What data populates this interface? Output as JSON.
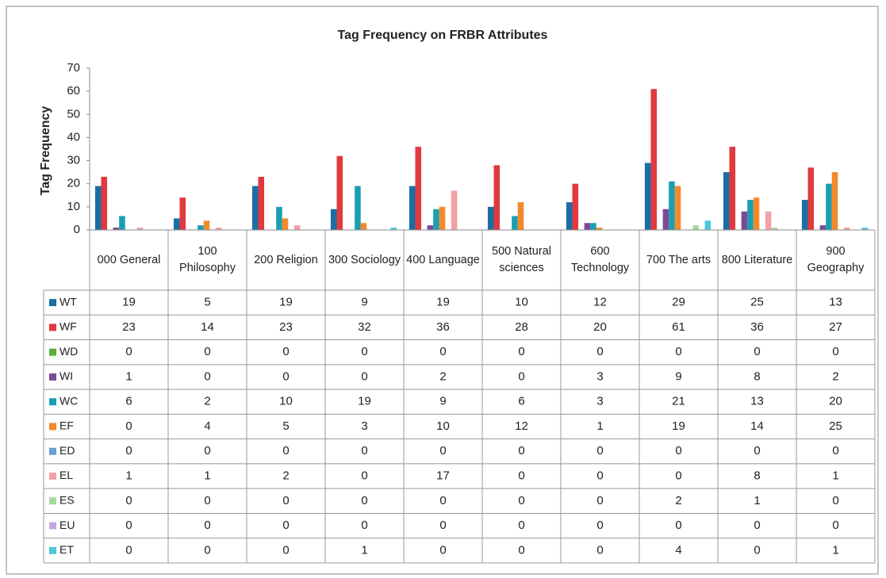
{
  "chart_data": {
    "type": "bar",
    "title": "Tag Frequency on FRBR Attributes",
    "y_label": "Tag Frequency",
    "categories": [
      "000 General",
      "100 Philosophy",
      "200 Religion",
      "300 Sociology",
      "400 Language",
      "500 Natural sciences",
      "600 Technology",
      "700 The arts",
      "800 Literature",
      "900 Geography"
    ],
    "series": [
      {
        "name": "WT",
        "color": "#1b6ea4",
        "values": [
          19,
          5,
          19,
          9,
          19,
          10,
          12,
          29,
          25,
          13
        ]
      },
      {
        "name": "WF",
        "color": "#e0393e",
        "values": [
          23,
          14,
          23,
          32,
          36,
          28,
          20,
          61,
          36,
          27
        ]
      },
      {
        "name": "WD",
        "color": "#5aaf3a",
        "values": [
          0,
          0,
          0,
          0,
          0,
          0,
          0,
          0,
          0,
          0
        ]
      },
      {
        "name": "WI",
        "color": "#7b4a96",
        "values": [
          1,
          0,
          0,
          0,
          2,
          0,
          3,
          9,
          8,
          2
        ]
      },
      {
        "name": "WC",
        "color": "#1a9fb2",
        "values": [
          6,
          2,
          10,
          19,
          9,
          6,
          3,
          21,
          13,
          20
        ]
      },
      {
        "name": "EF",
        "color": "#f38a2a",
        "values": [
          0,
          4,
          5,
          3,
          10,
          12,
          1,
          19,
          14,
          25
        ]
      },
      {
        "name": "ED",
        "color": "#6aa0d4",
        "values": [
          0,
          0,
          0,
          0,
          0,
          0,
          0,
          0,
          0,
          0
        ]
      },
      {
        "name": "EL",
        "color": "#f4a0a8",
        "values": [
          1,
          1,
          2,
          0,
          17,
          0,
          0,
          0,
          8,
          1
        ]
      },
      {
        "name": "ES",
        "color": "#a8d8a0",
        "values": [
          0,
          0,
          0,
          0,
          0,
          0,
          0,
          2,
          1,
          0
        ]
      },
      {
        "name": "EU",
        "color": "#c8a8dc",
        "values": [
          0,
          0,
          0,
          0,
          0,
          0,
          0,
          0,
          0,
          0
        ]
      },
      {
        "name": "ET",
        "color": "#4cc8dc",
        "values": [
          0,
          0,
          0,
          1,
          0,
          0,
          0,
          4,
          0,
          1
        ]
      }
    ],
    "ylim": [
      0,
      70
    ],
    "yticks": [
      0,
      10,
      20,
      30,
      40,
      50,
      60,
      70
    ],
    "grid": false,
    "legend": "table"
  }
}
